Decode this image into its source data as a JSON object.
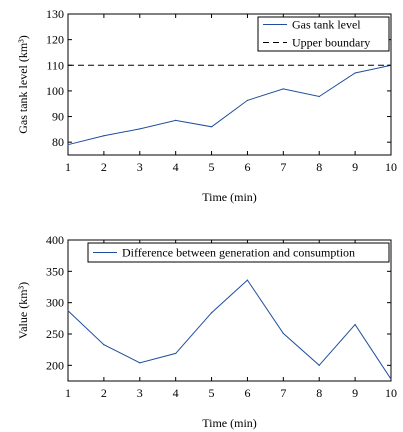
{
  "chart_data": [
    {
      "type": "line",
      "x": [
        1,
        2,
        3,
        4,
        5,
        6,
        7,
        8,
        9,
        10
      ],
      "series": [
        {
          "name": "Gas tank level",
          "values": [
            79,
            82.5,
            85.2,
            88.5,
            86,
            96.3,
            100.8,
            97.8,
            107,
            110
          ],
          "color": "#1f4e9c",
          "style": "solid"
        },
        {
          "name": "Upper boundary",
          "values": [
            110,
            110,
            110,
            110,
            110,
            110,
            110,
            110,
            110,
            110
          ],
          "color": "#000000",
          "style": "dashed"
        }
      ],
      "xlabel": "Time (min)",
      "ylabel": "Gas tank level (km³)",
      "xlim": [
        1,
        10
      ],
      "ylim": [
        75,
        130
      ],
      "xticks": [
        1,
        2,
        3,
        4,
        5,
        6,
        7,
        8,
        9,
        10
      ],
      "yticks": [
        80,
        90,
        100,
        110,
        120,
        130
      ],
      "grid": false,
      "legend": "top-right"
    },
    {
      "type": "line",
      "x": [
        1,
        2,
        3,
        4,
        5,
        6,
        7,
        8,
        9,
        10
      ],
      "series": [
        {
          "name": "Difference between generation and consumption",
          "values": [
            287,
            233,
            204,
            219,
            284,
            336,
            251,
            200,
            265,
            178
          ],
          "color": "#1f4e9c",
          "style": "solid"
        }
      ],
      "xlabel": "Time (min)",
      "ylabel": "Value (km³)",
      "xlim": [
        1,
        10
      ],
      "ylim": [
        175,
        400
      ],
      "xticks": [
        1,
        2,
        3,
        4,
        5,
        6,
        7,
        8,
        9,
        10
      ],
      "yticks": [
        200,
        250,
        300,
        350,
        400
      ],
      "grid": false,
      "legend": "top-right"
    }
  ]
}
